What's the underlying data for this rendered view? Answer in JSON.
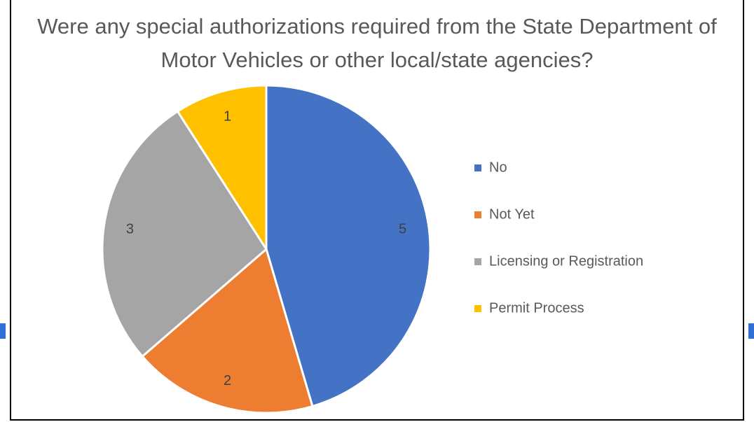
{
  "chart_data": {
    "type": "pie",
    "title": "Were any special authorizations required from the State Department of Motor Vehicles or other local/state agencies?",
    "categories": [
      "No",
      "Not Yet",
      "Licensing or Registration",
      "Permit Process"
    ],
    "values": [
      5,
      2,
      3,
      1
    ],
    "colors": [
      "#4472c4",
      "#ed7d31",
      "#a5a5a5",
      "#ffc000"
    ],
    "legend": "right"
  }
}
